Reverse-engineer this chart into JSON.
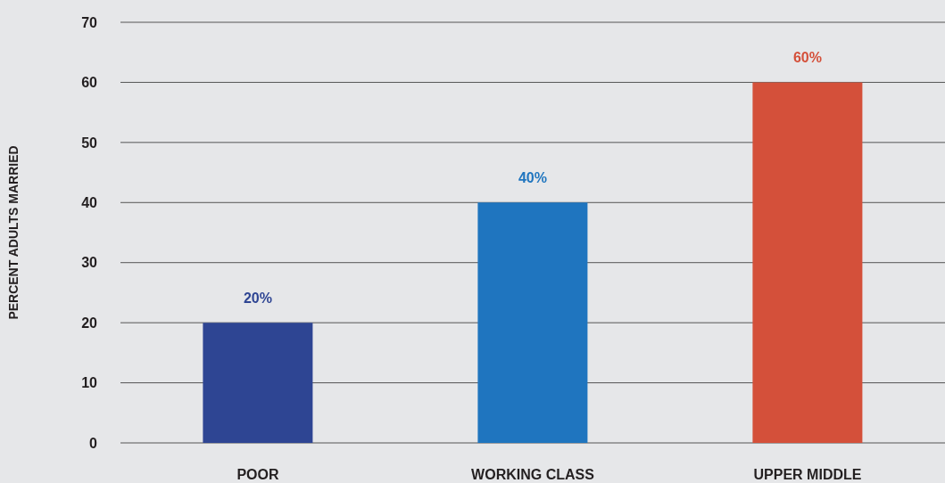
{
  "chart_data": {
    "type": "bar",
    "ylabel": "PERCENT ADULTS MARRIED",
    "categories": [
      "POOR",
      "WORKING CLASS",
      "UPPER MIDDLE"
    ],
    "values": [
      20,
      40,
      60
    ],
    "colors": [
      "#2e4593",
      "#1f75bf",
      "#d4503a"
    ],
    "value_labels": [
      "20%",
      "40%",
      "60%"
    ],
    "ylim": [
      0,
      70
    ],
    "yticks": [
      0,
      10,
      20,
      30,
      40,
      50,
      60,
      70
    ],
    "grid": "y",
    "legend": false
  }
}
